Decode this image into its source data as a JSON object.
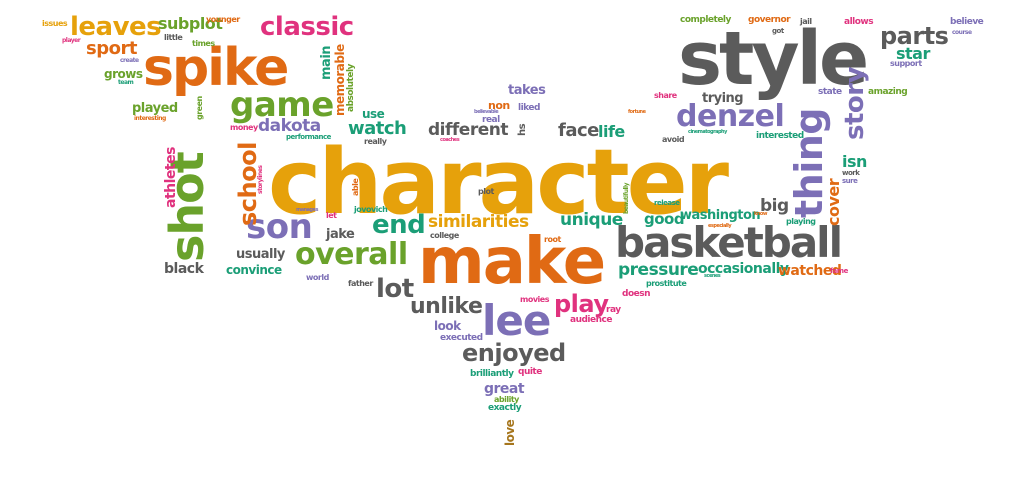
{
  "words": [
    {
      "text": "character",
      "color": "yellow"
    },
    {
      "text": "style",
      "color": "gray"
    },
    {
      "text": "make",
      "color": "orange"
    },
    {
      "text": "spike",
      "color": "orange"
    },
    {
      "text": "basketball",
      "color": "gray"
    },
    {
      "text": "shot",
      "color": "green"
    },
    {
      "text": "game",
      "color": "green"
    },
    {
      "text": "lee",
      "color": "purple"
    },
    {
      "text": "denzel",
      "color": "purple"
    },
    {
      "text": "overall",
      "color": "green"
    },
    {
      "text": "son",
      "color": "purple"
    },
    {
      "text": "thing",
      "color": "purple"
    },
    {
      "text": "leaves",
      "color": "yellow"
    },
    {
      "text": "classic",
      "color": "magenta"
    },
    {
      "text": "parts",
      "color": "gray"
    },
    {
      "text": "story",
      "color": "purple"
    },
    {
      "text": "school",
      "color": "orange"
    },
    {
      "text": "enjoyed",
      "color": "gray"
    },
    {
      "text": "end",
      "color": "teal"
    },
    {
      "text": "lot",
      "color": "gray"
    },
    {
      "text": "unlike",
      "color": "gray"
    },
    {
      "text": "play",
      "color": "magenta"
    },
    {
      "text": "sport",
      "color": "orange"
    },
    {
      "text": "subplot",
      "color": "green"
    },
    {
      "text": "face",
      "color": "gray"
    },
    {
      "text": "life",
      "color": "teal"
    },
    {
      "text": "different",
      "color": "gray"
    },
    {
      "text": "watch",
      "color": "teal"
    },
    {
      "text": "dakota",
      "color": "purple"
    },
    {
      "text": "similarities",
      "color": "yellow"
    },
    {
      "text": "unique",
      "color": "teal"
    },
    {
      "text": "pressure",
      "color": "teal"
    },
    {
      "text": "occasionally",
      "color": "teal"
    },
    {
      "text": "watched",
      "color": "orange"
    },
    {
      "text": "washington",
      "color": "teal"
    },
    {
      "text": "good",
      "color": "teal"
    },
    {
      "text": "big",
      "color": "gray"
    },
    {
      "text": "cover",
      "color": "orange"
    },
    {
      "text": "isn",
      "color": "teal"
    },
    {
      "text": "star",
      "color": "teal"
    },
    {
      "text": "main",
      "color": "teal"
    },
    {
      "text": "memorable",
      "color": "orange"
    },
    {
      "text": "absolutely",
      "color": "green"
    },
    {
      "text": "grows",
      "color": "green"
    },
    {
      "text": "played",
      "color": "green"
    },
    {
      "text": "athletes",
      "color": "magenta"
    },
    {
      "text": "black",
      "color": "gray"
    },
    {
      "text": "convince",
      "color": "teal"
    },
    {
      "text": "usually",
      "color": "gray"
    },
    {
      "text": "jake",
      "color": "gray"
    },
    {
      "text": "great",
      "color": "purple"
    },
    {
      "text": "love",
      "color": "brown"
    },
    {
      "text": "look",
      "color": "purple"
    },
    {
      "text": "takes",
      "color": "purple"
    },
    {
      "text": "trying",
      "color": "gray"
    },
    {
      "text": "use",
      "color": "teal"
    },
    {
      "text": "interested",
      "color": "teal"
    },
    {
      "text": "brilliantly",
      "color": "teal"
    },
    {
      "text": "exactly",
      "color": "teal"
    },
    {
      "text": "ability",
      "color": "green"
    },
    {
      "text": "quite",
      "color": "magenta"
    },
    {
      "text": "executed",
      "color": "purple"
    },
    {
      "text": "audience",
      "color": "magenta"
    },
    {
      "text": "doesn",
      "color": "magenta"
    },
    {
      "text": "ray",
      "color": "magenta"
    },
    {
      "text": "prostitute",
      "color": "teal"
    },
    {
      "text": "completely",
      "color": "green"
    },
    {
      "text": "governor",
      "color": "orange"
    },
    {
      "text": "allows",
      "color": "magenta"
    },
    {
      "text": "believe",
      "color": "purple"
    },
    {
      "text": "support",
      "color": "purple"
    },
    {
      "text": "amazing",
      "color": "green"
    },
    {
      "text": "state",
      "color": "purple"
    },
    {
      "text": "share",
      "color": "magenta"
    },
    {
      "text": "issues",
      "color": "yellow"
    },
    {
      "text": "younger",
      "color": "orange"
    },
    {
      "text": "little",
      "color": "gray"
    },
    {
      "text": "times",
      "color": "green"
    },
    {
      "text": "green",
      "color": "green"
    },
    {
      "text": "money",
      "color": "magenta"
    },
    {
      "text": "performance",
      "color": "teal"
    },
    {
      "text": "really",
      "color": "gray"
    },
    {
      "text": "non",
      "color": "orange"
    },
    {
      "text": "liked",
      "color": "purple"
    },
    {
      "text": "real",
      "color": "purple"
    },
    {
      "text": "hs",
      "color": "gray"
    },
    {
      "text": "plot",
      "color": "gray"
    },
    {
      "text": "jovovich",
      "color": "teal"
    },
    {
      "text": "able",
      "color": "orange"
    },
    {
      "text": "let",
      "color": "magenta"
    },
    {
      "text": "college",
      "color": "gray"
    },
    {
      "text": "root",
      "color": "orange"
    },
    {
      "text": "world",
      "color": "purple"
    },
    {
      "text": "father",
      "color": "gray"
    },
    {
      "text": "movies",
      "color": "magenta"
    },
    {
      "text": "avoid",
      "color": "gray"
    },
    {
      "text": "release",
      "color": "teal"
    },
    {
      "text": "playing",
      "color": "teal"
    },
    {
      "text": "fame",
      "color": "magenta"
    },
    {
      "text": "jail",
      "color": "gray"
    },
    {
      "text": "got",
      "color": "gray"
    },
    {
      "text": "player",
      "color": "magenta"
    },
    {
      "text": "create",
      "color": "purple"
    },
    {
      "text": "team",
      "color": "teal"
    },
    {
      "text": "interesting",
      "color": "orange"
    },
    {
      "text": "work",
      "color": "gray"
    },
    {
      "text": "sure",
      "color": "purple"
    },
    {
      "text": "believable",
      "color": "purple"
    },
    {
      "text": "fortune",
      "color": "orange"
    },
    {
      "text": "coaches",
      "color": "magenta"
    },
    {
      "text": "storylines",
      "color": "magenta"
    },
    {
      "text": "manages",
      "color": "purple"
    },
    {
      "text": "especially",
      "color": "orange"
    },
    {
      "text": "cinematography",
      "color": "teal"
    },
    {
      "text": "beautifully",
      "color": "green"
    },
    {
      "text": "know",
      "color": "orange"
    },
    {
      "text": "scenes",
      "color": "teal"
    },
    {
      "text": "course",
      "color": "purple"
    }
  ],
  "colors": {
    "orange": "#e06a14",
    "yellow": "#e6a10b",
    "green": "#6aa22b",
    "purple": "#7c6fb6",
    "gray": "#5b5b5b",
    "magenta": "#e0327e",
    "teal": "#1b9e77",
    "brown": "#a6761d"
  }
}
